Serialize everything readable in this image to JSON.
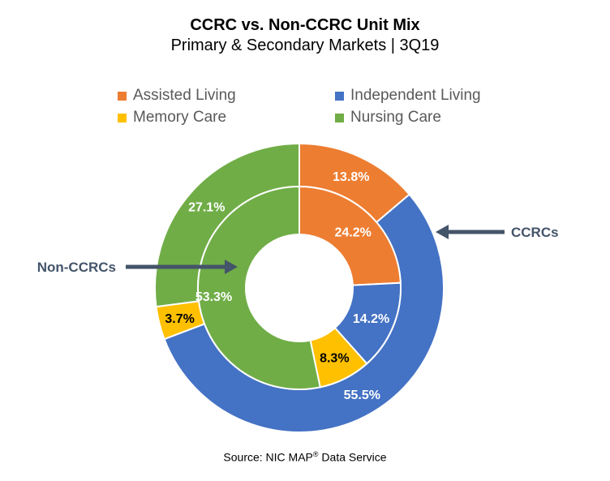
{
  "chart_data": {
    "type": "pie",
    "subtype": "doughnut",
    "title": "CCRC vs. Non-CCRC Unit Mix",
    "subtitle": "Primary & Secondary Markets | 3Q19",
    "categories": [
      "Assisted Living",
      "Independent Living",
      "Memory Care",
      "Nursing Care"
    ],
    "colors": [
      "#ED7D31",
      "#4472C4",
      "#FFC000",
      "#70AD47"
    ],
    "series": [
      {
        "name": "CCRCs",
        "ring": "outer",
        "values": [
          13.8,
          55.5,
          3.7,
          27.1
        ],
        "labels": [
          "13.8%",
          "55.5%",
          "3.7%",
          "27.1%"
        ]
      },
      {
        "name": "Non-CCRCs",
        "ring": "inner",
        "values": [
          24.2,
          14.2,
          8.3,
          53.3
        ],
        "labels": [
          "24.2%",
          "14.2%",
          "8.3%",
          "53.3%"
        ]
      }
    ],
    "annotations": [
      "CCRCs",
      "Non-CCRCs"
    ],
    "legend_position": "top",
    "source_prefix": "Source: NIC MAP",
    "source_mark": "®",
    "source_suffix": " Data Service"
  }
}
